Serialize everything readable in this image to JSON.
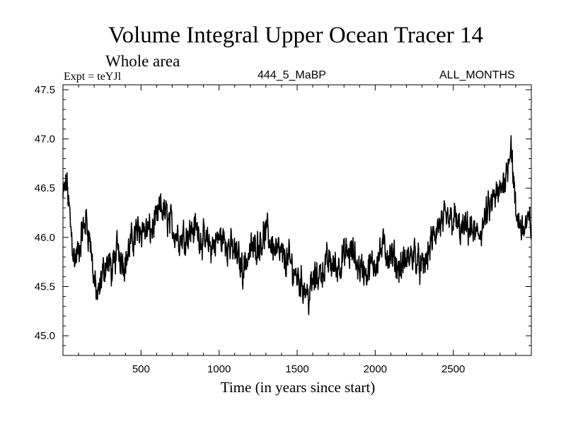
{
  "chart_data": {
    "type": "line",
    "title": "Volume Integral Upper Ocean Tracer 14",
    "subtitle": "Whole area",
    "expt_label": "Expt = teYJl",
    "center_label": "444_5_MaBP",
    "right_label": "ALL_MONTHS",
    "xlabel": "Time (in years since start)",
    "ylabel": "",
    "xlim": [
      0,
      3000
    ],
    "ylim": [
      44.8,
      47.55
    ],
    "x_ticks": [
      500,
      1000,
      1500,
      2000,
      2500
    ],
    "x_tick_labels": [
      "500",
      "1000",
      "1500",
      "2000",
      "2500"
    ],
    "y_ticks": [
      45.0,
      45.5,
      46.0,
      46.5,
      47.0,
      47.5
    ],
    "y_tick_labels": [
      "45.0",
      "45.5",
      "46.0",
      "46.5",
      "47.0",
      "47.5"
    ],
    "grid": false,
    "series": [
      {
        "name": "Volume Integral Upper Ocean Tracer 14",
        "color": "#000000",
        "x": [
          0,
          25,
          50,
          75,
          100,
          125,
          150,
          175,
          200,
          225,
          250,
          275,
          300,
          325,
          350,
          375,
          400,
          450,
          500,
          550,
          600,
          625,
          650,
          700,
          750,
          800,
          850,
          900,
          950,
          1000,
          1050,
          1100,
          1150,
          1200,
          1250,
          1300,
          1350,
          1400,
          1450,
          1500,
          1550,
          1575,
          1600,
          1650,
          1700,
          1750,
          1800,
          1850,
          1900,
          1950,
          2000,
          2050,
          2100,
          2150,
          2200,
          2250,
          2300,
          2350,
          2400,
          2450,
          2500,
          2550,
          2600,
          2650,
          2700,
          2750,
          2800,
          2850,
          2870,
          2900,
          2950,
          3000
        ],
        "values": [
          46.4,
          46.55,
          46.1,
          45.75,
          45.85,
          46.05,
          46.2,
          45.95,
          45.55,
          45.35,
          45.6,
          45.75,
          45.7,
          45.65,
          45.95,
          45.8,
          45.75,
          46.0,
          46.1,
          46.05,
          46.15,
          46.3,
          46.25,
          46.1,
          46.0,
          46.05,
          46.1,
          45.95,
          45.9,
          46.0,
          45.95,
          45.85,
          45.7,
          45.85,
          45.95,
          46.05,
          45.9,
          45.8,
          45.75,
          45.6,
          45.5,
          45.4,
          45.55,
          45.65,
          45.75,
          45.7,
          45.8,
          45.85,
          45.7,
          45.65,
          45.75,
          45.9,
          45.8,
          45.7,
          45.75,
          45.85,
          45.65,
          45.9,
          46.1,
          46.15,
          46.2,
          46.05,
          46.1,
          46.0,
          46.15,
          46.35,
          46.45,
          46.75,
          47.0,
          46.2,
          46.1,
          46.15
        ]
      }
    ]
  }
}
